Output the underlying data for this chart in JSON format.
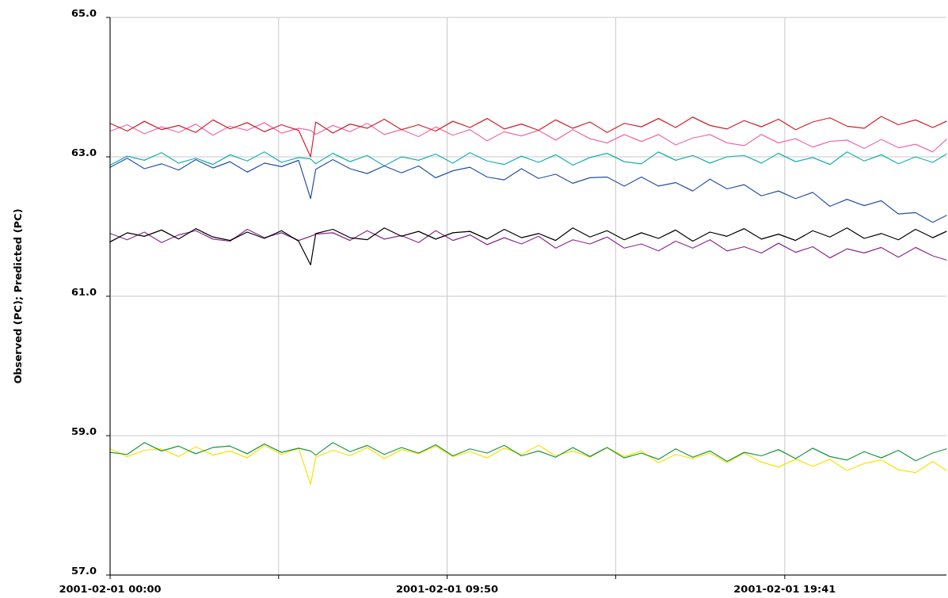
{
  "chart_data": {
    "type": "line",
    "ylabel": "Observed (PC); Predicted (PC)",
    "x": [
      "2001-02-01T00:00",
      "2001-02-01T00:30",
      "2001-02-01T01:00",
      "2001-02-01T01:30",
      "2001-02-01T02:00",
      "2001-02-01T02:30",
      "2001-02-01T03:00",
      "2001-02-01T03:30",
      "2001-02-01T04:00",
      "2001-02-01T04:30",
      "2001-02-01T05:00",
      "2001-02-01T05:30",
      "2001-02-01T05:51",
      "2001-02-01T06:00",
      "2001-02-01T06:30",
      "2001-02-01T07:00",
      "2001-02-01T07:30",
      "2001-02-01T08:00",
      "2001-02-01T08:30",
      "2001-02-01T09:00",
      "2001-02-01T09:30",
      "2001-02-01T10:00",
      "2001-02-01T10:30",
      "2001-02-01T11:00",
      "2001-02-01T11:30",
      "2001-02-01T12:00",
      "2001-02-01T12:30",
      "2001-02-01T13:00",
      "2001-02-01T13:30",
      "2001-02-01T14:00",
      "2001-02-01T14:30",
      "2001-02-01T15:00",
      "2001-02-01T15:30",
      "2001-02-01T16:00",
      "2001-02-01T16:30",
      "2001-02-01T17:00",
      "2001-02-01T17:30",
      "2001-02-01T18:00",
      "2001-02-01T18:30",
      "2001-02-01T19:00",
      "2001-02-01T19:30",
      "2001-02-01T20:00",
      "2001-02-01T20:30",
      "2001-02-01T21:00",
      "2001-02-01T21:30",
      "2001-02-01T22:00",
      "2001-02-01T22:30",
      "2001-02-01T23:00",
      "2001-02-01T23:30",
      "2001-02-02T00:00",
      "2001-02-02T00:24"
    ],
    "xlim": [
      "2001-02-01T00:00",
      "2001-02-02T00:24"
    ],
    "xticks": [
      {
        "value": "2001-02-01T00:00",
        "label": "2001-02-01 00:00"
      },
      {
        "value": "2001-02-01T04:55",
        "label": null
      },
      {
        "value": "2001-02-01T09:50",
        "label": "2001-02-01 09:50"
      },
      {
        "value": "2001-02-01T14:45",
        "label": null
      },
      {
        "value": "2001-02-01T19:41",
        "label": "2001-02-01 19:41"
      }
    ],
    "ylim": [
      57,
      65
    ],
    "yticks": [
      {
        "value": 57,
        "label": "57.0"
      },
      {
        "value": 59,
        "label": "59.0"
      },
      {
        "value": 61,
        "label": "61.0"
      },
      {
        "value": 63,
        "label": "63.0"
      },
      {
        "value": 65,
        "label": "65.0"
      }
    ],
    "grid": true,
    "series": [
      {
        "color": "#f06ba8",
        "values": [
          63.37,
          63.46,
          63.33,
          63.43,
          63.35,
          63.47,
          63.31,
          63.44,
          63.38,
          63.49,
          63.34,
          63.41,
          63.38,
          63.32,
          63.45,
          63.36,
          63.48,
          63.32,
          63.39,
          63.29,
          63.43,
          63.31,
          63.39,
          63.23,
          63.36,
          63.3,
          63.38,
          63.24,
          63.39,
          63.26,
          63.2,
          63.32,
          63.22,
          63.32,
          63.17,
          63.27,
          63.32,
          63.2,
          63.16,
          63.32,
          63.2,
          63.26,
          63.14,
          63.22,
          63.24,
          63.12,
          63.25,
          63.13,
          63.18,
          63.07,
          63.25
        ]
      },
      {
        "color": "#cc2229",
        "values": [
          63.48,
          63.37,
          63.51,
          63.39,
          63.45,
          63.35,
          63.53,
          63.4,
          63.49,
          63.36,
          63.46,
          63.38,
          63.0,
          63.5,
          63.34,
          63.47,
          63.41,
          63.54,
          63.39,
          63.46,
          63.37,
          63.51,
          63.42,
          63.55,
          63.4,
          63.47,
          63.38,
          63.53,
          63.41,
          63.5,
          63.35,
          63.48,
          63.43,
          63.55,
          63.42,
          63.57,
          63.45,
          63.4,
          63.52,
          63.43,
          63.54,
          63.39,
          63.5,
          63.56,
          63.44,
          63.41,
          63.58,
          63.46,
          63.53,
          63.42,
          63.51
        ]
      },
      {
        "color": "#1aafaf",
        "values": [
          62.88,
          63.01,
          62.95,
          63.06,
          62.91,
          62.98,
          62.89,
          63.03,
          62.94,
          63.07,
          62.92,
          62.99,
          62.97,
          62.9,
          63.05,
          62.93,
          63.02,
          62.87,
          63.0,
          62.95,
          63.04,
          62.91,
          63.06,
          62.94,
          62.89,
          63.01,
          62.92,
          63.03,
          62.88,
          62.99,
          63.05,
          62.93,
          62.9,
          63.07,
          62.95,
          63.02,
          62.91,
          63.0,
          63.02,
          62.91,
          63.05,
          62.93,
          62.99,
          62.89,
          63.07,
          62.94,
          63.03,
          62.9,
          63.0,
          62.92,
          63.04
        ]
      },
      {
        "color": "#2451a6",
        "values": [
          62.85,
          62.98,
          62.83,
          62.9,
          62.81,
          62.96,
          62.84,
          62.93,
          62.78,
          62.91,
          62.86,
          62.95,
          62.4,
          62.82,
          62.96,
          62.83,
          62.76,
          62.87,
          62.77,
          62.87,
          62.7,
          62.8,
          62.85,
          62.71,
          62.67,
          62.83,
          62.69,
          62.75,
          62.62,
          62.7,
          62.71,
          62.58,
          62.71,
          62.58,
          62.63,
          62.51,
          62.68,
          62.54,
          62.6,
          62.44,
          62.51,
          62.4,
          62.49,
          62.29,
          62.39,
          62.3,
          62.37,
          62.18,
          62.2,
          62.06,
          62.16
        ]
      },
      {
        "color": "#8b2a8e",
        "values": [
          61.9,
          61.81,
          61.92,
          61.77,
          61.88,
          61.94,
          61.82,
          61.79,
          61.96,
          61.84,
          61.91,
          61.8,
          61.86,
          61.89,
          61.91,
          61.8,
          61.94,
          61.82,
          61.87,
          61.77,
          61.94,
          61.8,
          61.88,
          61.74,
          61.84,
          61.75,
          61.86,
          61.69,
          61.81,
          61.75,
          61.85,
          61.69,
          61.75,
          61.65,
          61.79,
          61.69,
          61.81,
          61.65,
          61.71,
          61.62,
          61.76,
          61.63,
          61.71,
          61.55,
          61.68,
          61.62,
          61.7,
          61.56,
          61.7,
          61.58,
          61.52
        ]
      },
      {
        "color": "#000000",
        "values": [
          61.78,
          61.91,
          61.86,
          61.95,
          61.82,
          61.97,
          61.85,
          61.8,
          61.92,
          61.83,
          61.94,
          61.79,
          61.45,
          61.9,
          61.96,
          61.84,
          61.81,
          61.98,
          61.86,
          61.93,
          61.82,
          61.91,
          61.93,
          61.82,
          61.96,
          61.84,
          61.9,
          61.8,
          61.98,
          61.85,
          61.94,
          61.81,
          61.91,
          61.83,
          61.95,
          61.79,
          61.92,
          61.86,
          61.97,
          61.82,
          61.89,
          61.8,
          61.94,
          61.85,
          61.98,
          61.83,
          61.9,
          61.81,
          61.96,
          61.84,
          61.93
        ]
      },
      {
        "color": "#f5e400",
        "values": [
          58.81,
          58.7,
          58.79,
          58.81,
          58.7,
          58.84,
          58.72,
          58.78,
          58.68,
          58.86,
          58.73,
          58.82,
          58.3,
          58.69,
          58.79,
          58.71,
          58.83,
          58.67,
          58.8,
          58.74,
          58.85,
          58.7,
          58.77,
          58.68,
          58.82,
          58.73,
          58.86,
          58.71,
          58.78,
          58.69,
          58.83,
          58.7,
          58.78,
          58.61,
          58.73,
          58.67,
          58.75,
          58.61,
          58.75,
          58.62,
          58.55,
          58.66,
          58.56,
          58.66,
          58.5,
          58.6,
          58.65,
          58.51,
          58.47,
          58.63,
          58.5
        ]
      },
      {
        "color": "#1a9641",
        "values": [
          58.76,
          58.73,
          58.9,
          58.78,
          58.85,
          58.74,
          58.83,
          58.85,
          58.74,
          58.88,
          58.76,
          58.82,
          58.78,
          58.72,
          58.9,
          58.77,
          58.86,
          58.73,
          58.83,
          58.75,
          58.87,
          58.71,
          58.81,
          58.75,
          58.86,
          58.71,
          58.78,
          58.69,
          58.83,
          58.7,
          58.83,
          58.68,
          58.75,
          58.66,
          58.81,
          58.69,
          58.78,
          58.63,
          58.76,
          58.71,
          58.8,
          58.67,
          58.82,
          58.7,
          58.65,
          58.77,
          58.68,
          58.79,
          58.64,
          58.75,
          58.81
        ]
      }
    ]
  }
}
